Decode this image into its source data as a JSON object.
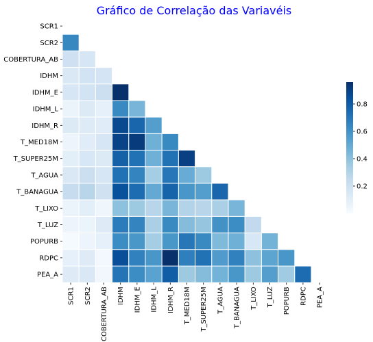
{
  "chart_data": {
    "type": "heatmap",
    "title": "Gráfico de Correlação das Variavéis",
    "title_color": "#0000ff",
    "variables": [
      "SCR1",
      "SCR2",
      "COBERTURA_AB",
      "IDHM",
      "IDHM_E",
      "IDHM_L",
      "IDHM_R",
      "T_MED18M",
      "T_SUPER25M",
      "T_AGUA",
      "T_BANAGUA",
      "T_LIXO",
      "T_LUZ",
      "POPURB",
      "RDPC",
      "PEA_A"
    ],
    "mask": "upper-triangle-including-diagonal",
    "colormap": "Blues",
    "cell_border_color": "#ffffff",
    "colorbar": {
      "vmin": 0.0,
      "vmax": 0.96,
      "ticks": [
        0.2,
        0.4,
        0.6,
        0.8
      ],
      "tick_labels": [
        "0.2",
        "0.4",
        "0.6",
        "0.8"
      ]
    },
    "values": [
      [],
      [
        0.64
      ],
      [
        0.2,
        0.16
      ],
      [
        0.14,
        0.18,
        0.17
      ],
      [
        0.16,
        0.18,
        0.21,
        0.96
      ],
      [
        0.06,
        0.13,
        0.08,
        0.63,
        0.45
      ],
      [
        0.13,
        0.12,
        0.11,
        0.87,
        0.76,
        0.55
      ],
      [
        0.05,
        0.11,
        0.16,
        0.89,
        0.92,
        0.47,
        0.63
      ],
      [
        0.1,
        0.15,
        0.13,
        0.78,
        0.72,
        0.47,
        0.72,
        0.9
      ],
      [
        0.14,
        0.21,
        0.16,
        0.72,
        0.65,
        0.34,
        0.7,
        0.49,
        0.36
      ],
      [
        0.23,
        0.28,
        0.19,
        0.84,
        0.74,
        0.5,
        0.77,
        0.58,
        0.55,
        0.76
      ],
      [
        0.06,
        0.1,
        0.04,
        0.4,
        0.36,
        0.28,
        0.45,
        0.3,
        0.28,
        0.32,
        0.45
      ],
      [
        0.05,
        0.06,
        0.12,
        0.68,
        0.65,
        0.32,
        0.63,
        0.42,
        0.38,
        0.6,
        0.62,
        0.25
      ],
      [
        0.01,
        0.05,
        0.08,
        0.62,
        0.58,
        0.34,
        0.58,
        0.7,
        0.63,
        0.43,
        0.47,
        0.15,
        0.46
      ],
      [
        0.08,
        0.12,
        0.02,
        0.85,
        0.66,
        0.58,
        0.98,
        0.67,
        0.72,
        0.56,
        0.66,
        0.4,
        0.52,
        0.58
      ],
      [
        0.12,
        0.14,
        0.03,
        0.71,
        0.62,
        0.53,
        0.79,
        0.36,
        0.42,
        0.46,
        0.58,
        0.36,
        0.55,
        0.35,
        0.74
      ]
    ]
  }
}
